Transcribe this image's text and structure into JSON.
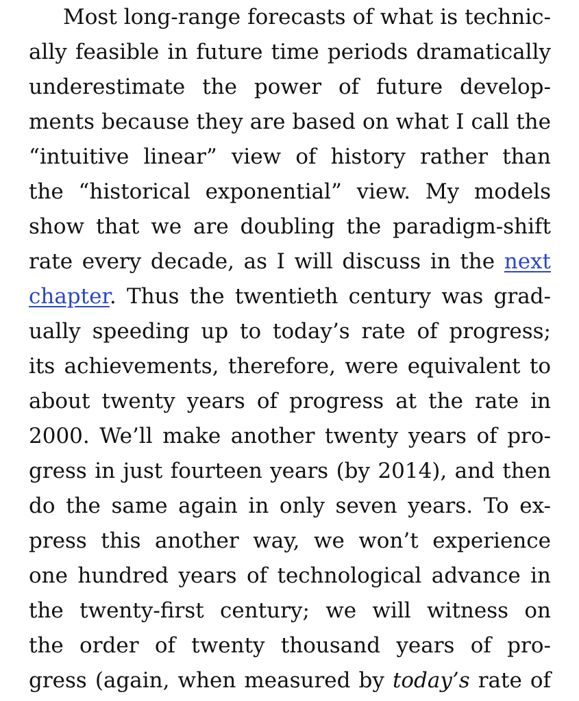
{
  "paragraph": {
    "line_1": "Most long-range forecasts of what is technic-",
    "line_2": "ally feasible in future time periods dramatically",
    "line_3": "underestimate the power of future develop-",
    "line_4": "ments because they are based on what I call the",
    "line_5": "“intuitive linear” view of history rather than",
    "line_6": "the “historical exponential” view. My models",
    "line_7": "show that we are doubling the paradigm-shift",
    "line_8_text": "rate every decade, as I will discuss in the ",
    "line_8_link": "next",
    "line_9_link": "chapter",
    "line_9_text": ". Thus the twentieth century was grad-",
    "line_10": "ually speeding up to today’s rate of progress;",
    "line_11": "its achievements, therefore, were equivalent to",
    "line_12": "about twenty years of progress at the rate in",
    "line_13": "2000. We’ll make another twenty years of pro-",
    "line_14": "gress in just fourteen years (by 2014), and then",
    "line_15": "do the same again in only seven years. To ex-",
    "line_16": "press this another way, we won’t experience",
    "line_17": "one hundred years of technological advance in",
    "line_18": "the twenty-first century; we will witness on",
    "line_19": "the order of twenty thousand years of pro-",
    "line_20_start": "gress (again, when measured by ",
    "line_20_em": "today’s",
    "line_20_end": " rate of"
  },
  "colors": {
    "text": "#111111",
    "link": "#2a46c8",
    "background": "#ffffff"
  }
}
